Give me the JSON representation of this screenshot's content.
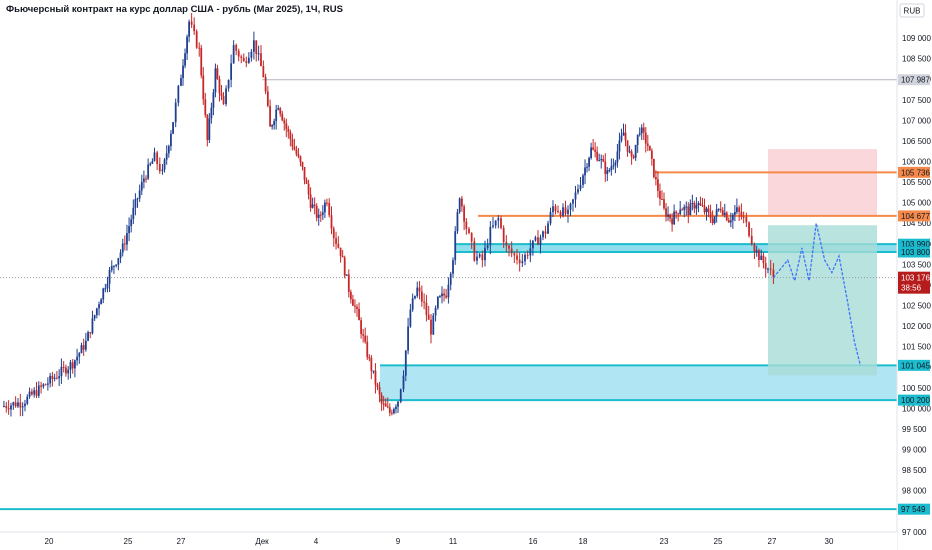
{
  "title": "Фьючерсный контракт на курс доллар США - рубль (Mar 2025), 1Ч, RUS",
  "currency": "RUB",
  "countdown": "38:56",
  "chart_data": {
    "type": "candlestick",
    "title": "Фьючерсный контракт на курс доллар США - рубль (Mar 2025), 1Ч, RUS",
    "ylim": [
      96800,
      109700
    ],
    "y_ticks": [
      "97 000",
      "97 500",
      "98 000",
      "98 500",
      "99 000",
      "99 500",
      "100 000",
      "100 500",
      "101 000",
      "101 500",
      "102 000",
      "102 500",
      "103 000",
      "103 500",
      "104 000",
      "104 500",
      "105 000",
      "105 500",
      "106 000",
      "106 500",
      "107 000",
      "107 500",
      "108 000",
      "108 500",
      "109 000"
    ],
    "x_ticks": [
      {
        "label": "20",
        "x": 0.0
      },
      {
        "label": "25",
        "x": 3.0
      },
      {
        "label": "27",
        "x": 5.0
      },
      {
        "label": "Дек",
        "x": 7.0
      },
      {
        "label": "4",
        "x": 9.0
      },
      {
        "label": "9",
        "x": 12.0
      },
      {
        "label": "11",
        "x": 14.0
      },
      {
        "label": "16",
        "x": 17.0
      },
      {
        "label": "18",
        "x": 19.0
      },
      {
        "label": "23",
        "x": 22.0
      },
      {
        "label": "25",
        "x": 24.0
      },
      {
        "label": "27",
        "x": 26.0
      },
      {
        "label": "30",
        "x": 28.0
      }
    ],
    "price_path": [
      [
        -1.8,
        100050
      ],
      [
        -1.0,
        100150
      ],
      [
        -0.3,
        100500
      ],
      [
        0.3,
        100800
      ],
      [
        0.9,
        101100
      ],
      [
        1.4,
        101600
      ],
      [
        1.9,
        102600
      ],
      [
        2.3,
        103300
      ],
      [
        2.8,
        103900
      ],
      [
        3.2,
        104800
      ],
      [
        3.6,
        105600
      ],
      [
        4.0,
        106100
      ],
      [
        4.3,
        105700
      ],
      [
        4.7,
        107000
      ],
      [
        5.0,
        108100
      ],
      [
        5.2,
        109400
      ],
      [
        5.45,
        108700
      ],
      [
        5.65,
        106500
      ],
      [
        5.85,
        108200
      ],
      [
        6.05,
        107300
      ],
      [
        6.3,
        108800
      ],
      [
        6.55,
        108400
      ],
      [
        6.8,
        108900
      ],
      [
        7.05,
        108100
      ],
      [
        7.3,
        106800
      ],
      [
        7.6,
        107400
      ],
      [
        7.9,
        106800
      ],
      [
        8.2,
        106300
      ],
      [
        8.5,
        105800
      ],
      [
        8.8,
        105000
      ],
      [
        9.1,
        104600
      ],
      [
        9.4,
        105100
      ],
      [
        9.65,
        104200
      ],
      [
        9.9,
        103800
      ],
      [
        10.2,
        102900
      ],
      [
        10.5,
        102300
      ],
      [
        10.8,
        101500
      ],
      [
        11.1,
        100800
      ],
      [
        11.4,
        100100
      ],
      [
        11.7,
        99900
      ],
      [
        12.0,
        100200
      ],
      [
        12.2,
        100900
      ],
      [
        12.45,
        102400
      ],
      [
        12.7,
        102900
      ],
      [
        12.95,
        102500
      ],
      [
        13.2,
        101900
      ],
      [
        13.45,
        102600
      ],
      [
        13.75,
        102800
      ],
      [
        14.0,
        103700
      ],
      [
        14.25,
        105200
      ],
      [
        14.5,
        104400
      ],
      [
        14.8,
        103700
      ],
      [
        15.1,
        103600
      ],
      [
        15.4,
        104300
      ],
      [
        15.7,
        104600
      ],
      [
        16.0,
        103900
      ],
      [
        16.3,
        103700
      ],
      [
        16.6,
        103600
      ],
      [
        16.9,
        103900
      ],
      [
        17.2,
        104100
      ],
      [
        17.5,
        104300
      ],
      [
        17.8,
        104900
      ],
      [
        18.1,
        104800
      ],
      [
        18.4,
        104700
      ],
      [
        18.7,
        105200
      ],
      [
        19.0,
        105700
      ],
      [
        19.3,
        106300
      ],
      [
        19.6,
        106100
      ],
      [
        19.9,
        105700
      ],
      [
        20.2,
        106100
      ],
      [
        20.5,
        106700
      ],
      [
        20.8,
        106000
      ],
      [
        21.1,
        106800
      ],
      [
        21.4,
        106400
      ],
      [
        21.7,
        105500
      ],
      [
        22.0,
        104800
      ],
      [
        22.3,
        104600
      ],
      [
        22.6,
        104900
      ],
      [
        22.9,
        104800
      ],
      [
        23.2,
        105000
      ],
      [
        23.5,
        104800
      ],
      [
        23.8,
        104600
      ],
      [
        24.1,
        104900
      ],
      [
        24.4,
        104600
      ],
      [
        24.7,
        104800
      ],
      [
        24.95,
        104600
      ],
      [
        25.15,
        104300
      ],
      [
        25.35,
        103900
      ],
      [
        25.6,
        103600
      ],
      [
        25.85,
        103400
      ],
      [
        26.05,
        103200
      ]
    ],
    "projection_path": [
      [
        26.05,
        103176
      ],
      [
        26.55,
        103600
      ],
      [
        26.8,
        103100
      ],
      [
        27.05,
        103900
      ],
      [
        27.3,
        103100
      ],
      [
        27.55,
        104500
      ],
      [
        27.85,
        103600
      ],
      [
        28.1,
        103300
      ],
      [
        28.35,
        103700
      ],
      [
        28.65,
        102600
      ],
      [
        28.9,
        101600
      ],
      [
        29.1,
        101045
      ]
    ],
    "horizontal_lines": [
      {
        "price": "107 987",
        "value": 107987,
        "color": "#b0b4bd",
        "style": "thin",
        "tag_bg": "#d1d4dc",
        "tag_fg": "#131722"
      },
      {
        "price": "105 736",
        "value": 105736,
        "color": "#f5894a",
        "style": "thick",
        "tag_bg": "#f5894a",
        "tag_fg": "#131722"
      },
      {
        "price": "104 677",
        "value": 104677,
        "color": "#f5894a",
        "style": "thick",
        "tag_bg": "#f5894a",
        "tag_fg": "#131722"
      },
      {
        "price": "97 549",
        "value": 97549,
        "color": "#1bbccd",
        "style": "thick",
        "tag_bg": "#1bbccd",
        "tag_fg": "#131722"
      },
      {
        "price": "103 176",
        "value": 103176,
        "color": "#9598a1",
        "style": "dotted",
        "tag_bg": "#b71c1c",
        "tag_fg": "#ffffff"
      }
    ],
    "zones": [
      {
        "top_label": "103 990",
        "bottom_label": "103 800",
        "top": 103990,
        "bottom": 103800,
        "fill": "#5ed0e6",
        "border": "#1bbccd"
      },
      {
        "top_label": "101 045",
        "bottom_label": "100 200",
        "top": 101045,
        "bottom": 100200,
        "fill": "#8fdcef",
        "border": "#1bbccd"
      }
    ],
    "position_tool": {
      "entry": 104677,
      "stop": 106300,
      "target": 100800,
      "risk_color": "#f8c9cf",
      "reward_color": "#a8dcd6"
    }
  }
}
